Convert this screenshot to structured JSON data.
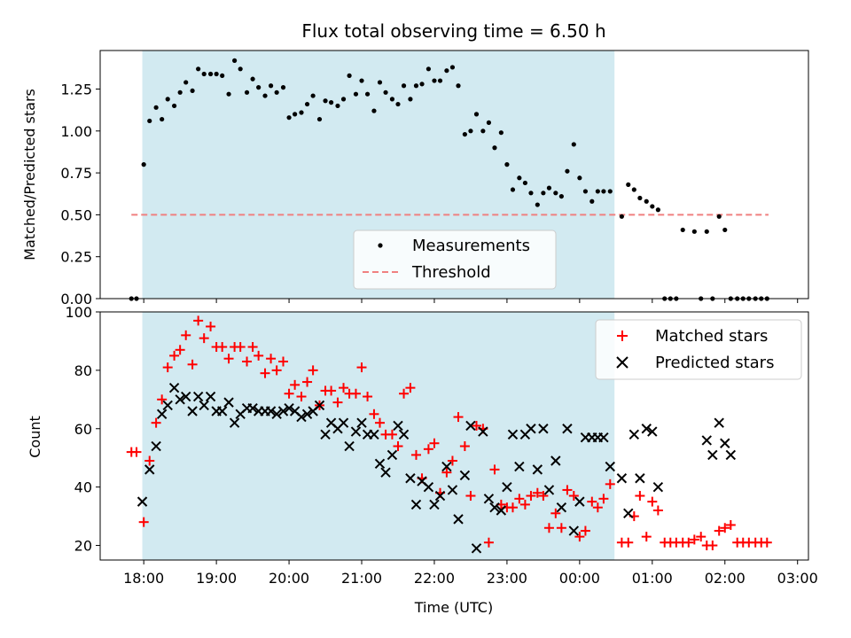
{
  "title": "Flux total observing time = 6.50 h",
  "xlabel": "Time (UTC)",
  "x_tick_labels": [
    "18:00",
    "19:00",
    "20:00",
    "21:00",
    "22:00",
    "23:00",
    "00:00",
    "01:00",
    "02:00",
    "03:00"
  ],
  "colors": {
    "shade": "#add8e6",
    "threshold": "#f08080",
    "matched": "#ff0000",
    "predicted": "#000000"
  },
  "chart_data": [
    {
      "type": "scatter",
      "ylabel": "Matched/Predicted stars",
      "ylim": [
        0,
        1.48
      ],
      "y_ticks": [
        "0.00",
        "0.25",
        "0.50",
        "0.75",
        "1.00",
        "1.25"
      ],
      "xlim_hours": [
        17.4,
        27.15
      ],
      "shaded_interval_hours": [
        17.98,
        24.48
      ],
      "threshold": {
        "value": 0.5,
        "from_hours": 17.83,
        "to_hours": 26.6
      },
      "legend": {
        "position": "lower-center",
        "entries": [
          "Measurements",
          "Threshold"
        ]
      },
      "measurements": {
        "x_hours": [
          17.83,
          17.9,
          18.0,
          18.08,
          18.17,
          18.25,
          18.33,
          18.42,
          18.5,
          18.58,
          18.67,
          18.75,
          18.83,
          18.92,
          19.0,
          19.08,
          19.17,
          19.25,
          19.33,
          19.42,
          19.5,
          19.58,
          19.67,
          19.75,
          19.83,
          19.92,
          20.0,
          20.08,
          20.17,
          20.25,
          20.33,
          20.42,
          20.5,
          20.58,
          20.67,
          20.75,
          20.83,
          20.92,
          21.0,
          21.08,
          21.17,
          21.25,
          21.33,
          21.42,
          21.5,
          21.58,
          21.67,
          21.75,
          21.83,
          21.92,
          22.0,
          22.08,
          22.17,
          22.25,
          22.33,
          22.42,
          22.5,
          22.58,
          22.67,
          22.75,
          22.83,
          22.92,
          23.0,
          23.08,
          23.17,
          23.25,
          23.33,
          23.42,
          23.5,
          23.58,
          23.67,
          23.75,
          23.83,
          23.92,
          24.0,
          24.08,
          24.17,
          24.25,
          24.33,
          24.42,
          24.58,
          24.67,
          24.75,
          24.83,
          24.92,
          25.0,
          25.08,
          25.17,
          25.25,
          25.33,
          25.42,
          25.58,
          25.67,
          25.75,
          25.83,
          25.92,
          26.0,
          26.08,
          26.17,
          26.25,
          26.33,
          26.42,
          26.5,
          26.58
        ],
        "y": [
          0.0,
          0.0,
          0.8,
          1.06,
          1.14,
          1.07,
          1.19,
          1.15,
          1.23,
          1.29,
          1.24,
          1.37,
          1.34,
          1.34,
          1.34,
          1.33,
          1.22,
          1.42,
          1.37,
          1.23,
          1.31,
          1.26,
          1.21,
          1.27,
          1.23,
          1.26,
          1.08,
          1.1,
          1.11,
          1.16,
          1.21,
          1.07,
          1.18,
          1.17,
          1.15,
          1.19,
          1.33,
          1.22,
          1.3,
          1.22,
          1.12,
          1.29,
          1.23,
          1.19,
          1.16,
          1.27,
          1.19,
          1.27,
          1.28,
          1.37,
          1.3,
          1.3,
          1.36,
          1.38,
          1.27,
          0.98,
          1.0,
          1.1,
          1.0,
          1.05,
          0.9,
          0.99,
          0.8,
          0.65,
          0.72,
          0.69,
          0.63,
          0.56,
          0.63,
          0.66,
          0.63,
          0.61,
          0.76,
          0.92,
          0.72,
          0.64,
          0.58,
          0.64,
          0.64,
          0.64,
          0.49,
          0.68,
          0.65,
          0.6,
          0.58,
          0.55,
          0.53,
          0.0,
          0.0,
          0.0,
          0.41,
          0.4,
          0.0,
          0.4,
          0.0,
          0.49,
          0.41,
          0.0,
          0.0,
          0.0,
          0.0,
          0.0,
          0.0,
          0.0
        ]
      }
    },
    {
      "type": "scatter",
      "ylabel": "Count",
      "ylim": [
        15,
        100
      ],
      "y_ticks": [
        "20",
        "40",
        "60",
        "80",
        "100"
      ],
      "legend": {
        "position": "top-right",
        "entries": [
          "Matched stars",
          "Predicted stars"
        ]
      },
      "series": [
        {
          "name": "Matched stars",
          "marker": "+",
          "x_hours": [
            17.83,
            17.9,
            18.0,
            18.08,
            18.17,
            18.25,
            18.33,
            18.42,
            18.5,
            18.58,
            18.67,
            18.75,
            18.83,
            18.92,
            19.0,
            19.08,
            19.17,
            19.25,
            19.33,
            19.42,
            19.5,
            19.58,
            19.67,
            19.75,
            19.83,
            19.92,
            20.0,
            20.08,
            20.17,
            20.25,
            20.33,
            20.42,
            20.5,
            20.58,
            20.67,
            20.75,
            20.83,
            20.92,
            21.0,
            21.08,
            21.17,
            21.25,
            21.33,
            21.42,
            21.5,
            21.58,
            21.67,
            21.75,
            21.83,
            21.92,
            22.0,
            22.08,
            22.17,
            22.25,
            22.33,
            22.42,
            22.5,
            22.58,
            22.67,
            22.75,
            22.83,
            22.92,
            23.0,
            23.08,
            23.17,
            23.25,
            23.33,
            23.42,
            23.5,
            23.58,
            23.67,
            23.75,
            23.83,
            23.92,
            24.0,
            24.08,
            24.17,
            24.25,
            24.33,
            24.42,
            24.58,
            24.67,
            24.75,
            24.83,
            24.92,
            25.0,
            25.08,
            25.17,
            25.25,
            25.33,
            25.42,
            25.5,
            25.58,
            25.67,
            25.75,
            25.83,
            25.92,
            26.0,
            26.08,
            26.17,
            26.25,
            26.33,
            26.42,
            26.5,
            26.58
          ],
          "y": [
            52,
            52,
            28,
            49,
            62,
            70,
            81,
            85,
            87,
            92,
            82,
            97,
            91,
            95,
            88,
            88,
            84,
            88,
            88,
            83,
            88,
            85,
            79,
            84,
            80,
            83,
            72,
            75,
            71,
            76,
            80,
            68,
            73,
            73,
            69,
            74,
            72,
            72,
            81,
            71,
            65,
            62,
            58,
            58,
            54,
            72,
            74,
            51,
            43,
            53,
            55,
            38,
            45,
            49,
            64,
            54,
            37,
            61,
            60,
            21,
            46,
            34,
            33,
            33,
            36,
            34,
            37,
            38,
            37,
            26,
            31,
            26,
            39,
            37,
            23,
            25,
            35,
            33,
            36,
            41,
            21,
            21,
            30,
            37,
            23,
            35,
            32,
            21,
            21,
            21,
            21,
            21,
            22,
            23,
            20,
            20,
            25,
            26,
            27,
            21,
            21,
            21,
            21,
            21,
            21
          ]
        },
        {
          "name": "Predicted stars",
          "marker": "x",
          "x_hours": [
            17.98,
            18.08,
            18.17,
            18.25,
            18.33,
            18.42,
            18.5,
            18.58,
            18.67,
            18.75,
            18.83,
            18.92,
            19.0,
            19.08,
            19.17,
            19.25,
            19.33,
            19.42,
            19.5,
            19.58,
            19.67,
            19.75,
            19.83,
            19.92,
            20.0,
            20.08,
            20.17,
            20.25,
            20.33,
            20.42,
            20.5,
            20.58,
            20.67,
            20.75,
            20.83,
            20.92,
            21.0,
            21.08,
            21.17,
            21.25,
            21.33,
            21.42,
            21.5,
            21.58,
            21.67,
            21.75,
            21.83,
            21.92,
            22.0,
            22.08,
            22.17,
            22.25,
            22.33,
            22.42,
            22.5,
            22.58,
            22.67,
            22.75,
            22.83,
            22.92,
            23.0,
            23.08,
            23.17,
            23.25,
            23.33,
            23.42,
            23.5,
            23.58,
            23.67,
            23.75,
            23.83,
            23.92,
            24.0,
            24.08,
            24.17,
            24.25,
            24.33,
            24.42,
            24.58,
            24.67,
            24.75,
            24.83,
            24.92,
            25.0,
            25.08,
            25.75,
            25.83,
            25.92,
            26.0,
            26.08
          ],
          "y": [
            35,
            46,
            54,
            65,
            68,
            74,
            70,
            71,
            66,
            71,
            68,
            71,
            66,
            66,
            69,
            62,
            65,
            67,
            67,
            66,
            66,
            66,
            65,
            66,
            67,
            66,
            64,
            65,
            66,
            68,
            58,
            62,
            60,
            62,
            54,
            59,
            62,
            58,
            58,
            48,
            45,
            51,
            61,
            58,
            43,
            34,
            42,
            40,
            34,
            37,
            47,
            39,
            29,
            44,
            61,
            19,
            59,
            36,
            33,
            32,
            40,
            58,
            47,
            58,
            60,
            46,
            60,
            39,
            49,
            33,
            60,
            25,
            35,
            57,
            57,
            57,
            57,
            47,
            43,
            31,
            58,
            43,
            60,
            59,
            40,
            56,
            51,
            62,
            55,
            51
          ]
        }
      ]
    }
  ]
}
